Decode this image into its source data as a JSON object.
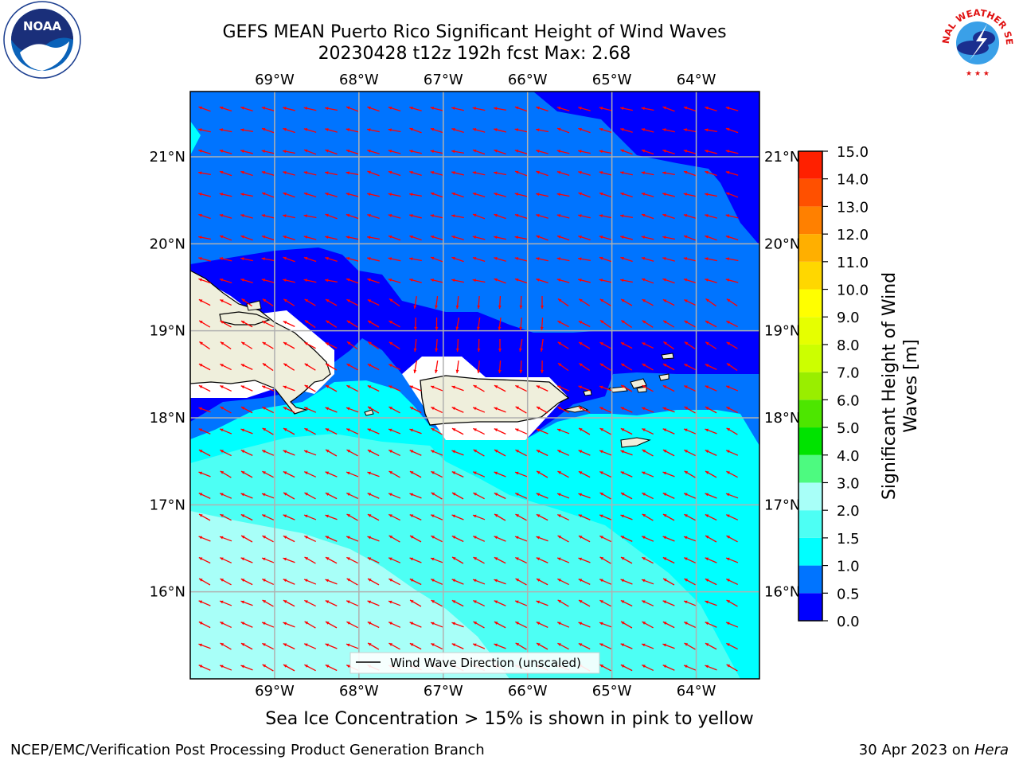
{
  "title_line1": "GEFS MEAN Puerto Rico Significant Height of Wind Waves",
  "title_line2": "20230428 t12z 192h fcst   Max: 2.68",
  "logos": {
    "left": {
      "icon": "noaa-logo-icon",
      "text": "NOAA",
      "ring_text": "NATIONAL OCEANIC AND ATMOSPHERIC ADMINISTRATION · U.S. DEPARTMENT OF COMMERCE"
    },
    "right": {
      "icon": "nws-logo-icon",
      "ring_text": "NATIONAL WEATHER SERVICE"
    }
  },
  "map": {
    "lon_labels": [
      "69°W",
      "68°W",
      "67°W",
      "66°W",
      "65°W",
      "64°W"
    ],
    "lat_labels": [
      "21°N",
      "20°N",
      "19°N",
      "18°N",
      "17°N",
      "16°N"
    ],
    "lon_values": [
      -69,
      -68,
      -67,
      -66,
      -65,
      -64
    ],
    "lat_values": [
      21,
      20,
      19,
      18,
      17,
      16
    ],
    "extent": {
      "lon_min": -70.0,
      "lon_max": -63.25,
      "lat_min": 15.0,
      "lat_max": 21.75
    },
    "arrow_color": "#ff0000",
    "land_color": "#efefdc",
    "legend_label": "Wind Wave Direction (unscaled)"
  },
  "colorbar": {
    "label_line1": "Significant Height of Wind",
    "label_line2": "Waves [m]",
    "ticks": [
      "0.0",
      "0.5",
      "1.0",
      "1.5",
      "2.0",
      "3.0",
      "4.0",
      "5.0",
      "6.0",
      "7.0",
      "8.0",
      "9.0",
      "10.0",
      "11.0",
      "12.0",
      "13.0",
      "14.0",
      "15.0"
    ],
    "levels": [
      0.0,
      0.5,
      1.0,
      1.5,
      2.0,
      3.0,
      4.0,
      5.0,
      6.0,
      7.0,
      8.0,
      9.0,
      10.0,
      11.0,
      12.0,
      13.0,
      14.0,
      15.0
    ],
    "colors": [
      "#0000ff",
      "#0074ff",
      "#00ffff",
      "#4dfff4",
      "#a8fff8",
      "#4dfa80",
      "#00e300",
      "#4de600",
      "#99ee00",
      "#ccff00",
      "#e6ff00",
      "#ffff00",
      "#ffd700",
      "#ffaf00",
      "#ff8000",
      "#ff5000",
      "#ff2000"
    ]
  },
  "ice_note": "Sea Ice Concentration > 15% is shown in pink to yellow",
  "footer": {
    "left": "NCEP/EMC/Verification Post Processing Product Generation Branch",
    "right_prefix": "30 Apr 2023 on ",
    "right_host": "Hera"
  }
}
